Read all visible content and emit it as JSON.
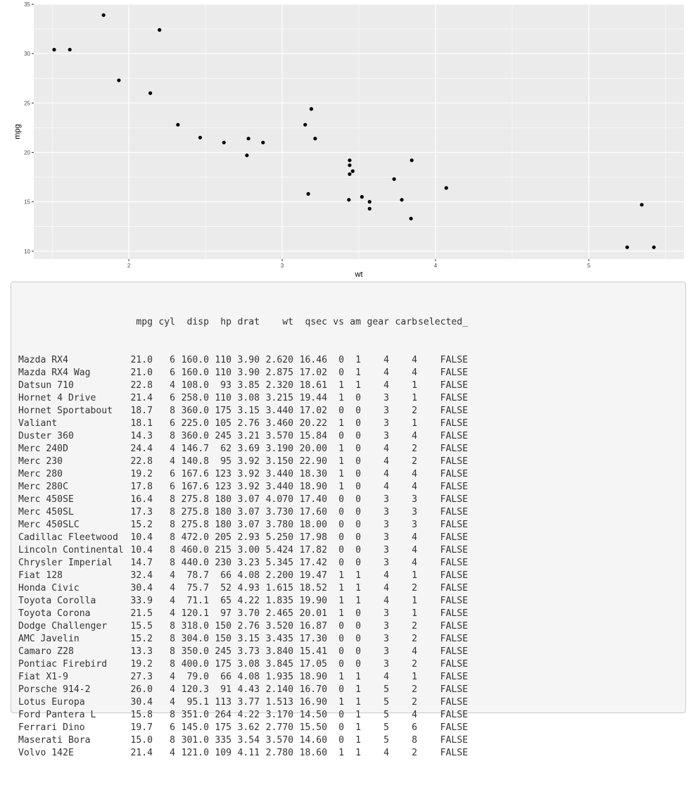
{
  "chart_data": {
    "type": "scatter",
    "title": "",
    "xlabel": "wt",
    "ylabel": "mpg",
    "xlim": [
      1.38,
      5.62
    ],
    "ylim": [
      9.2,
      35.0
    ],
    "xticks": [
      2,
      3,
      4,
      5
    ],
    "yticks": [
      10,
      15,
      20,
      25,
      30,
      35
    ],
    "grid": true,
    "x": [
      2.62,
      2.875,
      2.32,
      3.215,
      3.44,
      3.46,
      3.57,
      3.19,
      3.15,
      3.44,
      3.44,
      4.07,
      3.73,
      3.78,
      5.25,
      5.424,
      5.345,
      2.2,
      1.615,
      1.835,
      2.465,
      3.52,
      3.435,
      3.84,
      3.845,
      1.935,
      2.14,
      1.513,
      3.17,
      2.77,
      3.57,
      2.78
    ],
    "y": [
      21.0,
      21.0,
      22.8,
      21.4,
      18.7,
      18.1,
      14.3,
      24.4,
      22.8,
      19.2,
      17.8,
      16.4,
      17.3,
      15.2,
      10.4,
      10.4,
      14.7,
      32.4,
      30.4,
      33.9,
      21.5,
      15.5,
      15.2,
      13.3,
      19.2,
      27.3,
      26.0,
      30.4,
      15.8,
      19.7,
      15.0,
      21.4
    ],
    "point_color": "#000000",
    "panel_color": "#ebebeb",
    "grid_color": "#ffffff"
  },
  "table": {
    "header": [
      "",
      "mpg",
      "cyl",
      "disp",
      "hp",
      "drat",
      "wt",
      "qsec",
      "vs",
      "am",
      "gear",
      "carb",
      "selected_"
    ],
    "rows": [
      [
        "Mazda RX4",
        "21.0",
        "6",
        "160.0",
        "110",
        "3.90",
        "2.620",
        "16.46",
        "0",
        "1",
        "4",
        "4",
        "FALSE"
      ],
      [
        "Mazda RX4 Wag",
        "21.0",
        "6",
        "160.0",
        "110",
        "3.90",
        "2.875",
        "17.02",
        "0",
        "1",
        "4",
        "4",
        "FALSE"
      ],
      [
        "Datsun 710",
        "22.8",
        "4",
        "108.0",
        "93",
        "3.85",
        "2.320",
        "18.61",
        "1",
        "1",
        "4",
        "1",
        "FALSE"
      ],
      [
        "Hornet 4 Drive",
        "21.4",
        "6",
        "258.0",
        "110",
        "3.08",
        "3.215",
        "19.44",
        "1",
        "0",
        "3",
        "1",
        "FALSE"
      ],
      [
        "Hornet Sportabout",
        "18.7",
        "8",
        "360.0",
        "175",
        "3.15",
        "3.440",
        "17.02",
        "0",
        "0",
        "3",
        "2",
        "FALSE"
      ],
      [
        "Valiant",
        "18.1",
        "6",
        "225.0",
        "105",
        "2.76",
        "3.460",
        "20.22",
        "1",
        "0",
        "3",
        "1",
        "FALSE"
      ],
      [
        "Duster 360",
        "14.3",
        "8",
        "360.0",
        "245",
        "3.21",
        "3.570",
        "15.84",
        "0",
        "0",
        "3",
        "4",
        "FALSE"
      ],
      [
        "Merc 240D",
        "24.4",
        "4",
        "146.7",
        "62",
        "3.69",
        "3.190",
        "20.00",
        "1",
        "0",
        "4",
        "2",
        "FALSE"
      ],
      [
        "Merc 230",
        "22.8",
        "4",
        "140.8",
        "95",
        "3.92",
        "3.150",
        "22.90",
        "1",
        "0",
        "4",
        "2",
        "FALSE"
      ],
      [
        "Merc 280",
        "19.2",
        "6",
        "167.6",
        "123",
        "3.92",
        "3.440",
        "18.30",
        "1",
        "0",
        "4",
        "4",
        "FALSE"
      ],
      [
        "Merc 280C",
        "17.8",
        "6",
        "167.6",
        "123",
        "3.92",
        "3.440",
        "18.90",
        "1",
        "0",
        "4",
        "4",
        "FALSE"
      ],
      [
        "Merc 450SE",
        "16.4",
        "8",
        "275.8",
        "180",
        "3.07",
        "4.070",
        "17.40",
        "0",
        "0",
        "3",
        "3",
        "FALSE"
      ],
      [
        "Merc 450SL",
        "17.3",
        "8",
        "275.8",
        "180",
        "3.07",
        "3.730",
        "17.60",
        "0",
        "0",
        "3",
        "3",
        "FALSE"
      ],
      [
        "Merc 450SLC",
        "15.2",
        "8",
        "275.8",
        "180",
        "3.07",
        "3.780",
        "18.00",
        "0",
        "0",
        "3",
        "3",
        "FALSE"
      ],
      [
        "Cadillac Fleetwood",
        "10.4",
        "8",
        "472.0",
        "205",
        "2.93",
        "5.250",
        "17.98",
        "0",
        "0",
        "3",
        "4",
        "FALSE"
      ],
      [
        "Lincoln Continental",
        "10.4",
        "8",
        "460.0",
        "215",
        "3.00",
        "5.424",
        "17.82",
        "0",
        "0",
        "3",
        "4",
        "FALSE"
      ],
      [
        "Chrysler Imperial",
        "14.7",
        "8",
        "440.0",
        "230",
        "3.23",
        "5.345",
        "17.42",
        "0",
        "0",
        "3",
        "4",
        "FALSE"
      ],
      [
        "Fiat 128",
        "32.4",
        "4",
        "78.7",
        "66",
        "4.08",
        "2.200",
        "19.47",
        "1",
        "1",
        "4",
        "1",
        "FALSE"
      ],
      [
        "Honda Civic",
        "30.4",
        "4",
        "75.7",
        "52",
        "4.93",
        "1.615",
        "18.52",
        "1",
        "1",
        "4",
        "2",
        "FALSE"
      ],
      [
        "Toyota Corolla",
        "33.9",
        "4",
        "71.1",
        "65",
        "4.22",
        "1.835",
        "19.90",
        "1",
        "1",
        "4",
        "1",
        "FALSE"
      ],
      [
        "Toyota Corona",
        "21.5",
        "4",
        "120.1",
        "97",
        "3.70",
        "2.465",
        "20.01",
        "1",
        "0",
        "3",
        "1",
        "FALSE"
      ],
      [
        "Dodge Challenger",
        "15.5",
        "8",
        "318.0",
        "150",
        "2.76",
        "3.520",
        "16.87",
        "0",
        "0",
        "3",
        "2",
        "FALSE"
      ],
      [
        "AMC Javelin",
        "15.2",
        "8",
        "304.0",
        "150",
        "3.15",
        "3.435",
        "17.30",
        "0",
        "0",
        "3",
        "2",
        "FALSE"
      ],
      [
        "Camaro Z28",
        "13.3",
        "8",
        "350.0",
        "245",
        "3.73",
        "3.840",
        "15.41",
        "0",
        "0",
        "3",
        "4",
        "FALSE"
      ],
      [
        "Pontiac Firebird",
        "19.2",
        "8",
        "400.0",
        "175",
        "3.08",
        "3.845",
        "17.05",
        "0",
        "0",
        "3",
        "2",
        "FALSE"
      ],
      [
        "Fiat X1-9",
        "27.3",
        "4",
        "79.0",
        "66",
        "4.08",
        "1.935",
        "18.90",
        "1",
        "1",
        "4",
        "1",
        "FALSE"
      ],
      [
        "Porsche 914-2",
        "26.0",
        "4",
        "120.3",
        "91",
        "4.43",
        "2.140",
        "16.70",
        "0",
        "1",
        "5",
        "2",
        "FALSE"
      ],
      [
        "Lotus Europa",
        "30.4",
        "4",
        "95.1",
        "113",
        "3.77",
        "1.513",
        "16.90",
        "1",
        "1",
        "5",
        "2",
        "FALSE"
      ],
      [
        "Ford Pantera L",
        "15.8",
        "8",
        "351.0",
        "264",
        "4.22",
        "3.170",
        "14.50",
        "0",
        "1",
        "5",
        "4",
        "FALSE"
      ],
      [
        "Ferrari Dino",
        "19.7",
        "6",
        "145.0",
        "175",
        "3.62",
        "2.770",
        "15.50",
        "0",
        "1",
        "5",
        "6",
        "FALSE"
      ],
      [
        "Maserati Bora",
        "15.0",
        "8",
        "301.0",
        "335",
        "3.54",
        "3.570",
        "14.60",
        "0",
        "1",
        "5",
        "8",
        "FALSE"
      ],
      [
        "Volvo 142E",
        "21.4",
        "4",
        "121.0",
        "109",
        "4.11",
        "2.780",
        "18.60",
        "1",
        "1",
        "4",
        "2",
        "FALSE"
      ]
    ]
  }
}
